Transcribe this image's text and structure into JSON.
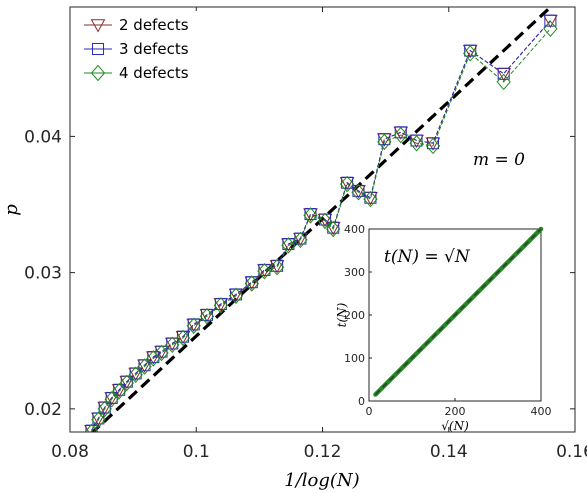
{
  "chart_data": [
    {
      "type": "line",
      "xlabel": "1/log(N)",
      "ylabel": "p",
      "xlim": [
        0.08,
        0.16
      ],
      "ylim": [
        0.0183,
        0.0495
      ],
      "xticks": [
        0.08,
        0.1,
        0.12,
        0.14,
        0.16
      ],
      "yticks": [
        0.02,
        0.03,
        0.04
      ],
      "xtick_labels": [
        "0.08",
        "0.1",
        "0.12",
        "0.14",
        "0.16"
      ],
      "ytick_labels": [
        "0.02",
        "0.03",
        "0.04"
      ],
      "legend_position": "top-left",
      "annotation": "m = 0",
      "series": [
        {
          "name": "2 defects",
          "color": "#8b2a2a",
          "marker": "triangle-down",
          "x": [
            0.0834,
            0.0845,
            0.0855,
            0.0866,
            0.0878,
            0.089,
            0.0904,
            0.0918,
            0.0932,
            0.0945,
            0.0962,
            0.0979,
            0.0996,
            0.1017,
            0.1039,
            0.1063,
            0.1088,
            0.1108,
            0.1128,
            0.1146,
            0.1165,
            0.1181,
            0.1204,
            0.1217,
            0.1239,
            0.1257,
            0.1276,
            0.1298,
            0.1324,
            0.1349,
            0.1375,
            0.1434,
            0.1487,
            0.1561
          ],
          "y": [
            0.0184,
            0.0193,
            0.0201,
            0.0208,
            0.0214,
            0.022,
            0.0226,
            0.0232,
            0.0238,
            0.0242,
            0.0248,
            0.0253,
            0.0262,
            0.0269,
            0.0277,
            0.0284,
            0.0293,
            0.0302,
            0.0305,
            0.0321,
            0.0325,
            0.0343,
            0.0339,
            0.0333,
            0.0366,
            0.036,
            0.0355,
            0.0398,
            0.0403,
            0.0397,
            0.0395,
            0.0463,
            0.0446,
            0.0485
          ]
        },
        {
          "name": "3 defects",
          "color": "#2b2bb8",
          "marker": "square",
          "x": [
            0.0834,
            0.0845,
            0.0855,
            0.0866,
            0.0878,
            0.089,
            0.0904,
            0.0918,
            0.0932,
            0.0945,
            0.0962,
            0.0979,
            0.0996,
            0.1017,
            0.1039,
            0.1063,
            0.1088,
            0.1108,
            0.1128,
            0.1146,
            0.1165,
            0.1181,
            0.1204,
            0.1217,
            0.1239,
            0.1257,
            0.1276,
            0.1298,
            0.1324,
            0.1349,
            0.1375,
            0.1434,
            0.1487,
            0.1561
          ],
          "y": [
            0.0184,
            0.0193,
            0.0201,
            0.0208,
            0.0214,
            0.022,
            0.0226,
            0.0232,
            0.0238,
            0.0242,
            0.0248,
            0.0253,
            0.0262,
            0.0269,
            0.0277,
            0.0284,
            0.0293,
            0.0302,
            0.0305,
            0.0321,
            0.0325,
            0.0343,
            0.0339,
            0.0333,
            0.0366,
            0.036,
            0.0355,
            0.0398,
            0.0403,
            0.0397,
            0.0395,
            0.0463,
            0.0446,
            0.0485
          ]
        },
        {
          "name": "4 defects",
          "color": "#1f8a1f",
          "marker": "diamond",
          "x": [
            0.0834,
            0.0845,
            0.0855,
            0.0866,
            0.0878,
            0.089,
            0.0904,
            0.0918,
            0.0932,
            0.0945,
            0.0962,
            0.0979,
            0.0996,
            0.1017,
            0.1039,
            0.1063,
            0.1088,
            0.1108,
            0.1128,
            0.1146,
            0.1165,
            0.1181,
            0.1204,
            0.1217,
            0.1239,
            0.1257,
            0.1276,
            0.1298,
            0.1324,
            0.1349,
            0.1375,
            0.1434,
            0.1487,
            0.1561
          ],
          "y": [
            0.0183,
            0.0192,
            0.02,
            0.0207,
            0.0213,
            0.0219,
            0.0225,
            0.0231,
            0.0237,
            0.0241,
            0.0247,
            0.0252,
            0.0261,
            0.0268,
            0.0276,
            0.0283,
            0.0292,
            0.0301,
            0.0304,
            0.032,
            0.0324,
            0.0342,
            0.0338,
            0.0332,
            0.0365,
            0.0359,
            0.0354,
            0.0396,
            0.0401,
            0.0395,
            0.0393,
            0.0461,
            0.044,
            0.0479
          ]
        },
        {
          "name": "",
          "style": "dashed",
          "color": "#000000",
          "x": [
            0.0834,
            0.158
          ],
          "y": [
            0.0182,
            0.0503
          ]
        }
      ]
    },
    {
      "type": "line",
      "inset": true,
      "annotation": "t(N) = √N",
      "xlabel": "√(N)",
      "ylabel": "t(N)",
      "xlim": [
        0,
        400
      ],
      "ylim": [
        0,
        400
      ],
      "xticks": [
        0,
        200,
        400
      ],
      "yticks": [
        0,
        100,
        200,
        300,
        400
      ],
      "xtick_labels": [
        "0",
        "200",
        "400"
      ],
      "ytick_labels": [
        "0",
        "100",
        "200",
        "300",
        "400"
      ],
      "series": [
        {
          "name": "",
          "color": "#1f8a1f",
          "x": [
            15,
            400
          ],
          "y": [
            15,
            400
          ]
        },
        {
          "name": "",
          "style": "dashed",
          "color": "#3a3a3a",
          "x": [
            15,
            400
          ],
          "y": [
            15,
            400
          ]
        }
      ]
    }
  ]
}
